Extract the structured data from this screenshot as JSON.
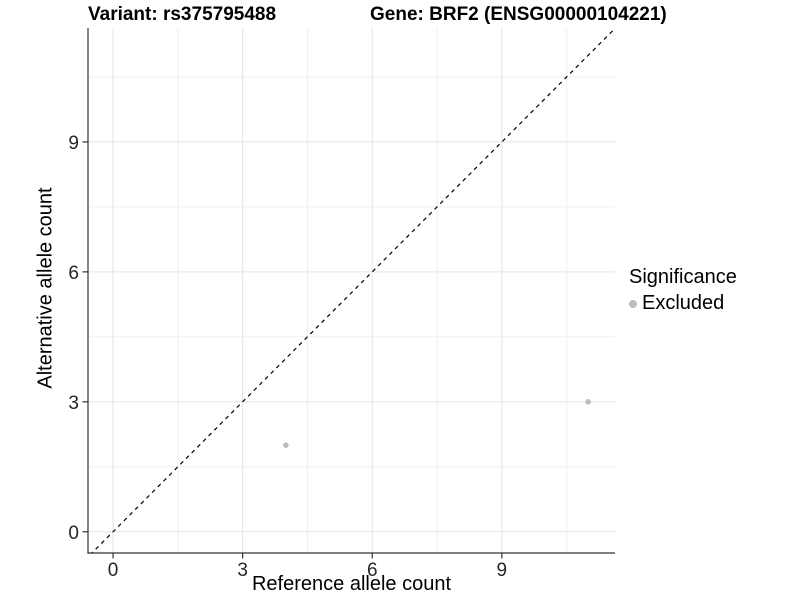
{
  "titles": {
    "left": "Variant: rs375795488",
    "right": "Gene: BRF2 (ENSG00000104221)"
  },
  "axes": {
    "x": {
      "label": "Reference allele count",
      "tick_labels": [
        "0",
        "3",
        "6",
        "9"
      ],
      "ticks": [
        0,
        3,
        6,
        9
      ],
      "minor_ticks": [
        1.5,
        4.5,
        7.5,
        10.5
      ]
    },
    "y": {
      "label": "Alternative allele count",
      "tick_labels": [
        "0",
        "3",
        "6",
        "9"
      ],
      "ticks": [
        0,
        3,
        6,
        9
      ],
      "minor_ticks": [
        1.5,
        4.5,
        7.5,
        10.5
      ]
    }
  },
  "legend": {
    "title": "Significance",
    "items": [
      {
        "label": "Excluded",
        "color": "#bdbdbd"
      }
    ]
  },
  "chart_data": {
    "type": "scatter",
    "title": "Variant: rs375795488 | Gene: BRF2 (ENSG00000104221)",
    "xlabel": "Reference allele count",
    "ylabel": "Alternative allele count",
    "xlim": [
      -0.58,
      11.62
    ],
    "ylim": [
      -0.49,
      11.63
    ],
    "x_ticks": [
      0,
      3,
      6,
      9
    ],
    "y_ticks": [
      0,
      3,
      6,
      9
    ],
    "x_minor_ticks": [
      1.5,
      4.5,
      7.5,
      10.5
    ],
    "y_minor_ticks": [
      1.5,
      4.5,
      7.5,
      10.5
    ],
    "grid": true,
    "legend_position": "right",
    "series": [
      {
        "name": "Excluded",
        "color": "#bdbdbd",
        "points": [
          {
            "x": 4,
            "y": 2
          },
          {
            "x": 11,
            "y": 3
          }
        ]
      }
    ],
    "reference_line": {
      "type": "identity",
      "slope": 1,
      "intercept": 0,
      "style": "dashed",
      "color": "#000000"
    }
  },
  "style": {
    "background": "#ffffff",
    "major_grid": "#e4e4e4",
    "minor_grid": "#efefef",
    "axis_line": "#333333",
    "tick_label_color": "#262626",
    "point_color": "#bdbdbd"
  }
}
